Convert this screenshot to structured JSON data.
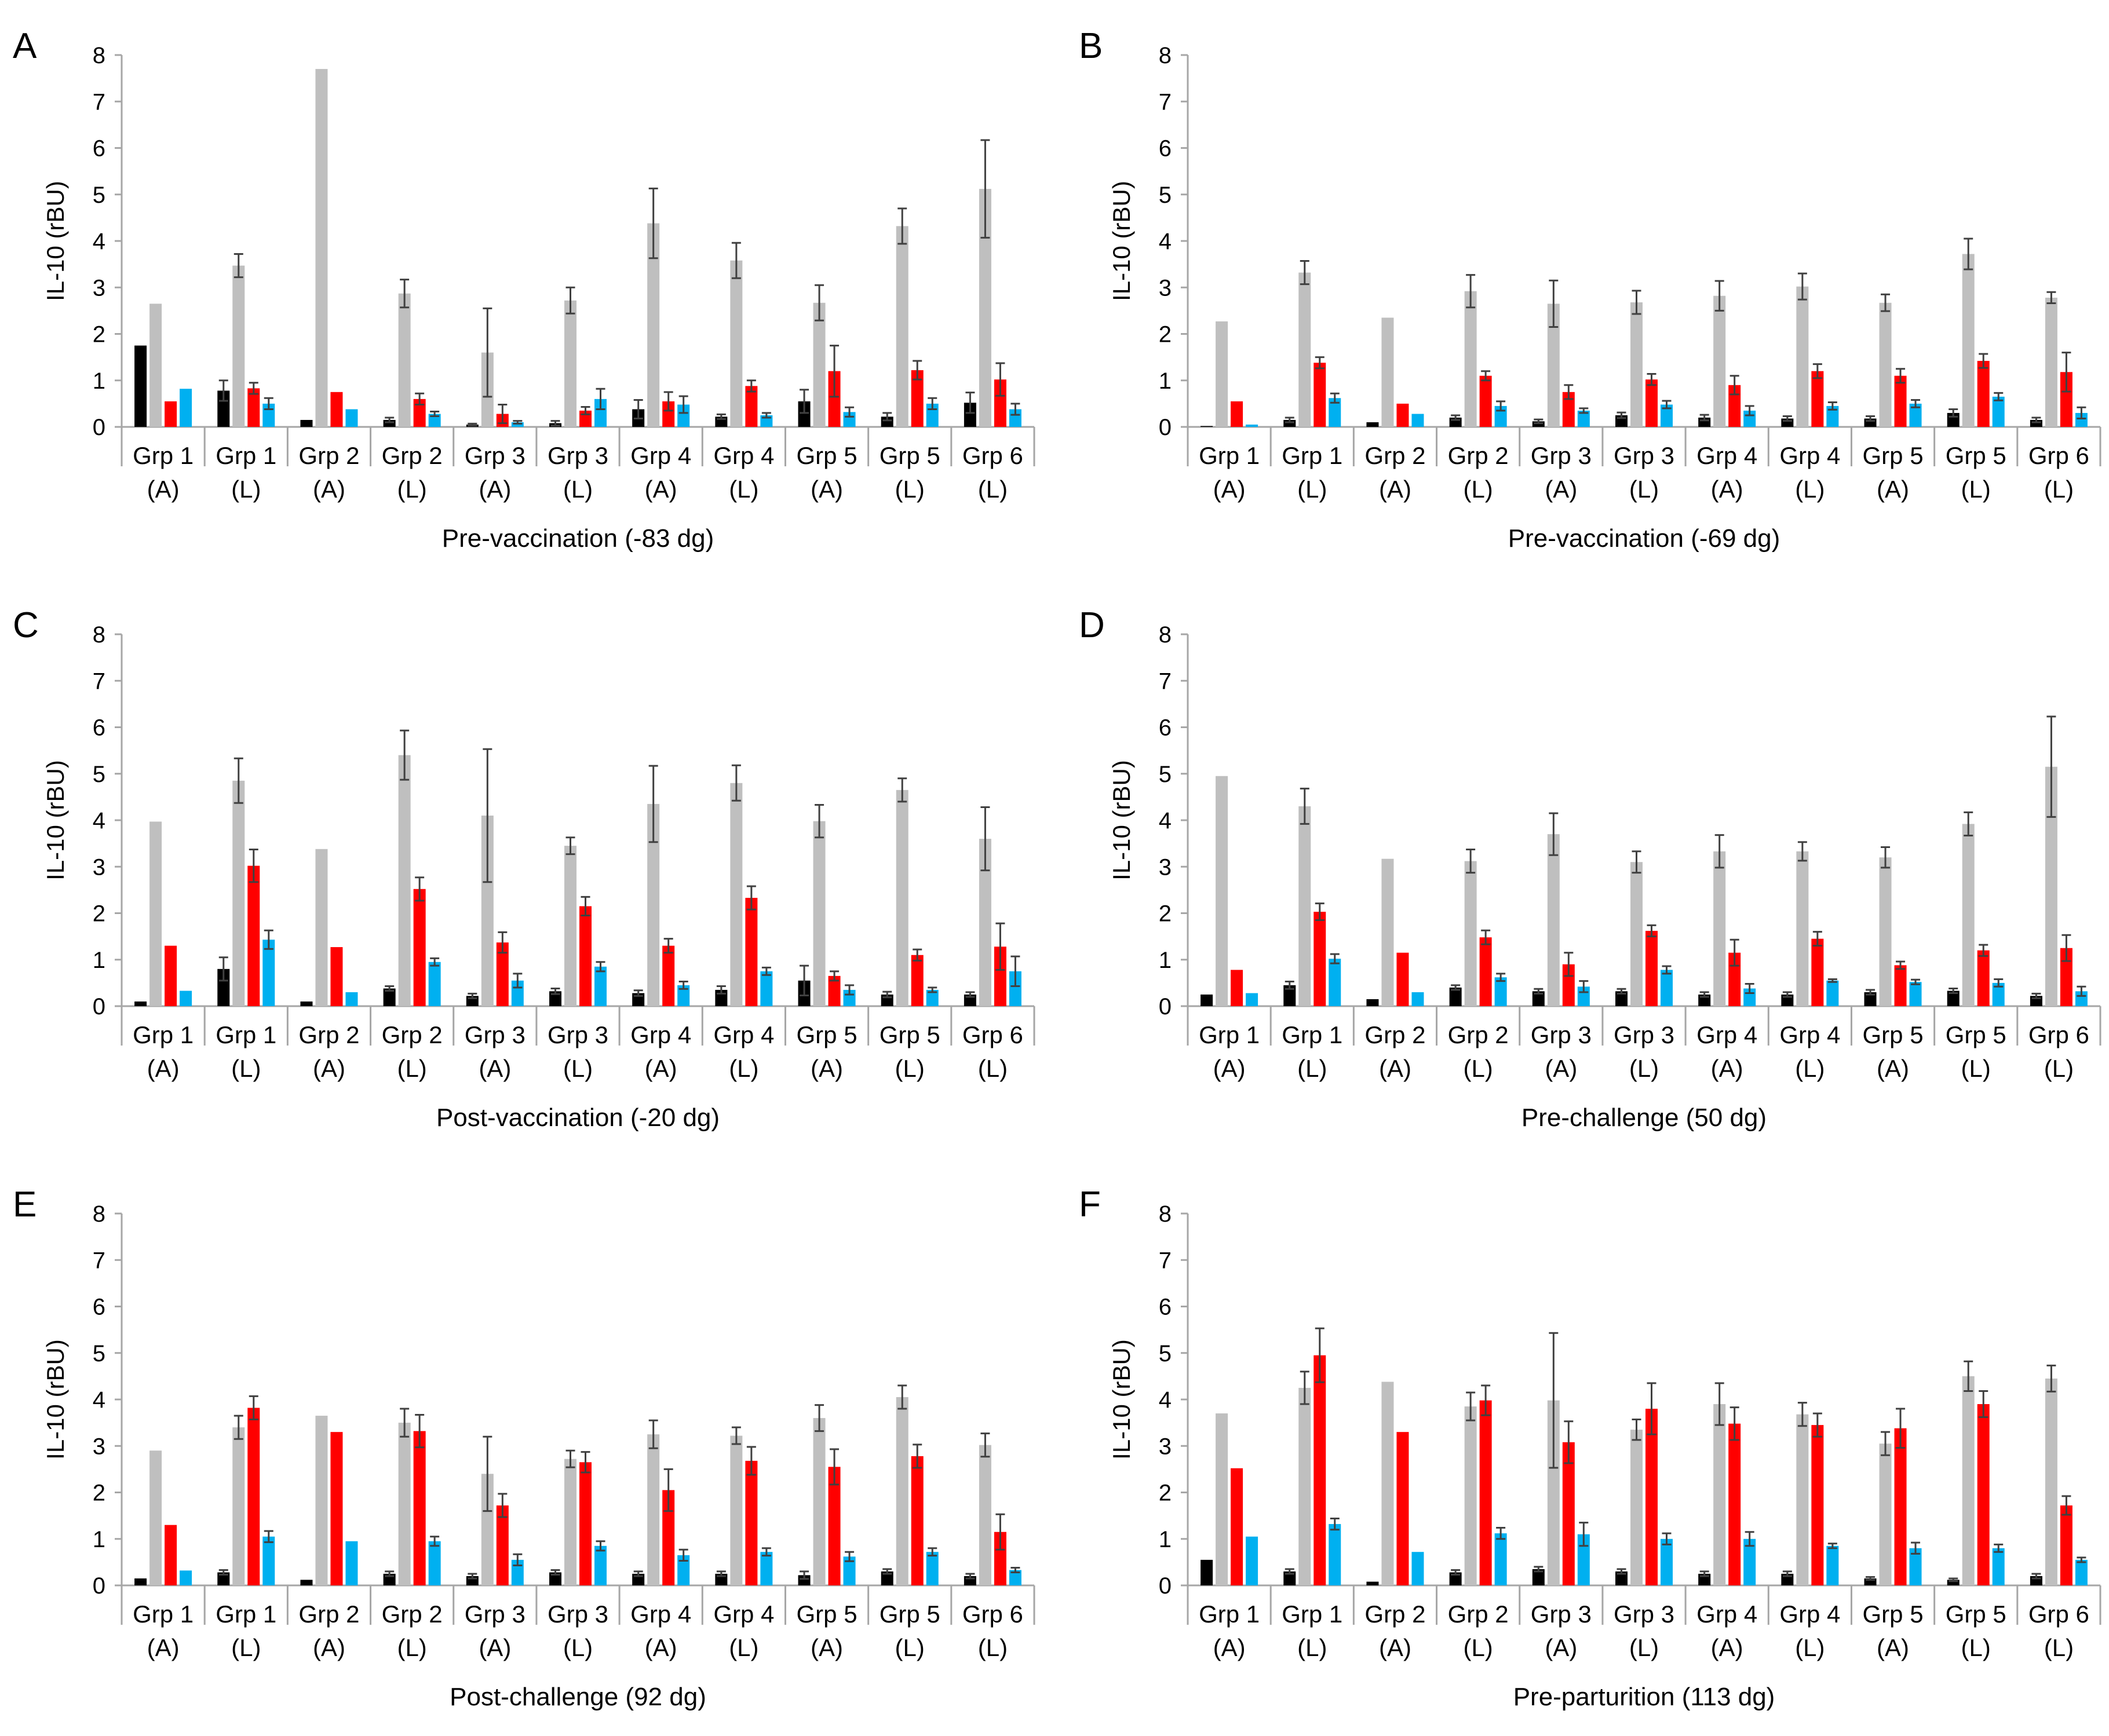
{
  "figure": {
    "colors": {
      "black": "#000000",
      "gray": "#bfbfbf",
      "red": "#ff0000",
      "blue": "#00b0f0",
      "axis": "#a6a6a6",
      "errorbar": "#404040"
    }
  },
  "chart_data": [
    {
      "type": "bar",
      "panel": "A",
      "title": "Pre-vaccination (-83 dg)",
      "ylabel": "IL-10 (rBU)",
      "ylim": [
        0,
        8
      ],
      "yticks": [
        "0",
        "1",
        "2",
        "3",
        "4",
        "5",
        "6",
        "7",
        "8"
      ],
      "categories": [
        [
          "Grp 1",
          "(A)"
        ],
        [
          "Grp 1",
          "(L)"
        ],
        [
          "Grp 2",
          "(A)"
        ],
        [
          "Grp 2",
          "(L)"
        ],
        [
          "Grp 3",
          "(A)"
        ],
        [
          "Grp 3",
          "(L)"
        ],
        [
          "Grp 4",
          "(A)"
        ],
        [
          "Grp 4",
          "(L)"
        ],
        [
          "Grp 5",
          "(A)"
        ],
        [
          "Grp 5",
          "(L)"
        ],
        [
          "Grp 6",
          "(L)"
        ]
      ],
      "series": [
        {
          "name": "black",
          "values": [
            1.75,
            0.78,
            0.15,
            0.15,
            0.05,
            0.08,
            0.38,
            0.22,
            0.55,
            0.22,
            0.52
          ],
          "errors": [
            0,
            0.22,
            0,
            0.05,
            0.02,
            0.05,
            0.2,
            0.05,
            0.25,
            0.08,
            0.22
          ]
        },
        {
          "name": "gray",
          "values": [
            2.65,
            3.47,
            7.7,
            2.87,
            1.6,
            2.72,
            4.38,
            3.58,
            2.67,
            4.32,
            5.12
          ],
          "errors": [
            0,
            0.25,
            0,
            0.3,
            0.95,
            0.28,
            0.75,
            0.38,
            0.38,
            0.38,
            1.05
          ]
        },
        {
          "name": "red",
          "values": [
            0.55,
            0.83,
            0.75,
            0.6,
            0.28,
            0.35,
            0.55,
            0.88,
            1.2,
            1.22,
            1.02
          ],
          "errors": [
            0,
            0.12,
            0,
            0.12,
            0.2,
            0.08,
            0.2,
            0.12,
            0.55,
            0.2,
            0.35
          ]
        },
        {
          "name": "blue",
          "values": [
            0.82,
            0.5,
            0.38,
            0.28,
            0.1,
            0.6,
            0.48,
            0.25,
            0.32,
            0.5,
            0.38
          ],
          "errors": [
            0,
            0.12,
            0,
            0.05,
            0.03,
            0.22,
            0.18,
            0.05,
            0.1,
            0.12,
            0.12
          ]
        }
      ]
    },
    {
      "type": "bar",
      "panel": "B",
      "title": "Pre-vaccination (-69 dg)",
      "ylabel": "IL-10 (rBU)",
      "ylim": [
        0,
        8
      ],
      "yticks": [
        "0",
        "1",
        "2",
        "3",
        "4",
        "5",
        "6",
        "7",
        "8"
      ],
      "categories": [
        [
          "Grp 1",
          "(A)"
        ],
        [
          "Grp 1",
          "(L)"
        ],
        [
          "Grp 2",
          "(A)"
        ],
        [
          "Grp 2",
          "(L)"
        ],
        [
          "Grp 3",
          "(A)"
        ],
        [
          "Grp 3",
          "(L)"
        ],
        [
          "Grp 4",
          "(A)"
        ],
        [
          "Grp 4",
          "(L)"
        ],
        [
          "Grp 5",
          "(A)"
        ],
        [
          "Grp 5",
          "(L)"
        ],
        [
          "Grp 6",
          "(L)"
        ]
      ],
      "series": [
        {
          "name": "black",
          "values": [
            0.02,
            0.15,
            0.1,
            0.2,
            0.12,
            0.25,
            0.2,
            0.18,
            0.18,
            0.3,
            0.15
          ],
          "errors": [
            0,
            0.05,
            0,
            0.05,
            0.04,
            0.06,
            0.06,
            0.05,
            0.05,
            0.08,
            0.05
          ]
        },
        {
          "name": "gray",
          "values": [
            2.27,
            3.32,
            2.35,
            2.92,
            2.65,
            2.68,
            2.82,
            3.02,
            2.67,
            3.72,
            2.78
          ],
          "errors": [
            0,
            0.25,
            0,
            0.35,
            0.5,
            0.25,
            0.32,
            0.28,
            0.18,
            0.33,
            0.12
          ]
        },
        {
          "name": "red",
          "values": [
            0.55,
            1.38,
            0.5,
            1.1,
            0.75,
            1.02,
            0.9,
            1.2,
            1.1,
            1.42,
            1.18
          ],
          "errors": [
            0,
            0.12,
            0,
            0.1,
            0.15,
            0.12,
            0.2,
            0.15,
            0.15,
            0.15,
            0.42
          ]
        },
        {
          "name": "blue",
          "values": [
            0.05,
            0.62,
            0.28,
            0.45,
            0.35,
            0.48,
            0.35,
            0.45,
            0.5,
            0.65,
            0.3
          ],
          "errors": [
            0,
            0.1,
            0,
            0.1,
            0.05,
            0.08,
            0.1,
            0.08,
            0.08,
            0.08,
            0.12
          ]
        }
      ]
    },
    {
      "type": "bar",
      "panel": "C",
      "title": "Post-vaccination (-20 dg)",
      "ylabel": "IL-10 (rBU)",
      "ylim": [
        0,
        8
      ],
      "yticks": [
        "0",
        "1",
        "2",
        "3",
        "4",
        "5",
        "6",
        "7",
        "8"
      ],
      "categories": [
        [
          "Grp 1",
          "(A)"
        ],
        [
          "Grp 1",
          "(L)"
        ],
        [
          "Grp 2",
          "(A)"
        ],
        [
          "Grp 2",
          "(L)"
        ],
        [
          "Grp 3",
          "(A)"
        ],
        [
          "Grp 3",
          "(L)"
        ],
        [
          "Grp 4",
          "(A)"
        ],
        [
          "Grp 4",
          "(L)"
        ],
        [
          "Grp 5",
          "(A)"
        ],
        [
          "Grp 5",
          "(L)"
        ],
        [
          "Grp 6",
          "(L)"
        ]
      ],
      "series": [
        {
          "name": "black",
          "values": [
            0.1,
            0.8,
            0.1,
            0.38,
            0.22,
            0.32,
            0.28,
            0.35,
            0.55,
            0.25,
            0.25
          ],
          "errors": [
            0,
            0.25,
            0,
            0.05,
            0.05,
            0.06,
            0.06,
            0.08,
            0.32,
            0.06,
            0.05
          ]
        },
        {
          "name": "gray",
          "values": [
            3.97,
            4.85,
            3.38,
            5.4,
            4.1,
            3.45,
            4.35,
            4.8,
            3.98,
            4.65,
            3.6
          ],
          "errors": [
            0,
            0.48,
            0,
            0.53,
            1.43,
            0.18,
            0.82,
            0.38,
            0.35,
            0.25,
            0.68
          ]
        },
        {
          "name": "red",
          "values": [
            1.3,
            3.02,
            1.27,
            2.52,
            1.37,
            2.15,
            1.3,
            2.33,
            0.65,
            1.1,
            1.28
          ],
          "errors": [
            0,
            0.35,
            0,
            0.25,
            0.22,
            0.2,
            0.15,
            0.25,
            0.1,
            0.12,
            0.5
          ]
        },
        {
          "name": "blue",
          "values": [
            0.33,
            1.43,
            0.3,
            0.95,
            0.55,
            0.85,
            0.45,
            0.75,
            0.35,
            0.35,
            0.75
          ],
          "errors": [
            0,
            0.2,
            0,
            0.08,
            0.15,
            0.1,
            0.08,
            0.08,
            0.1,
            0.05,
            0.32
          ]
        }
      ]
    },
    {
      "type": "bar",
      "panel": "D",
      "title": "Pre-challenge (50 dg)",
      "ylabel": "IL-10 (rBU)",
      "ylim": [
        0,
        8
      ],
      "yticks": [
        "0",
        "1",
        "2",
        "3",
        "4",
        "5",
        "6",
        "7",
        "8"
      ],
      "categories": [
        [
          "Grp 1",
          "(A)"
        ],
        [
          "Grp 1",
          "(L)"
        ],
        [
          "Grp 2",
          "(A)"
        ],
        [
          "Grp 2",
          "(L)"
        ],
        [
          "Grp 3",
          "(A)"
        ],
        [
          "Grp 3",
          "(L)"
        ],
        [
          "Grp 4",
          "(A)"
        ],
        [
          "Grp 4",
          "(L)"
        ],
        [
          "Grp 5",
          "(A)"
        ],
        [
          "Grp 5",
          "(L)"
        ],
        [
          "Grp 6",
          "(L)"
        ]
      ],
      "series": [
        {
          "name": "black",
          "values": [
            0.25,
            0.45,
            0.15,
            0.4,
            0.32,
            0.32,
            0.25,
            0.25,
            0.3,
            0.33,
            0.22
          ],
          "errors": [
            0,
            0.08,
            0,
            0.05,
            0.05,
            0.05,
            0.05,
            0.05,
            0.05,
            0.05,
            0.05
          ]
        },
        {
          "name": "gray",
          "values": [
            4.95,
            4.3,
            3.17,
            3.12,
            3.7,
            3.1,
            3.33,
            3.33,
            3.2,
            3.92,
            5.15
          ],
          "errors": [
            0,
            0.38,
            0,
            0.25,
            0.45,
            0.23,
            0.35,
            0.2,
            0.22,
            0.25,
            1.08
          ]
        },
        {
          "name": "red",
          "values": [
            0.78,
            2.03,
            1.15,
            1.48,
            0.9,
            1.62,
            1.15,
            1.45,
            0.88,
            1.2,
            1.25
          ],
          "errors": [
            0,
            0.18,
            0,
            0.15,
            0.25,
            0.12,
            0.28,
            0.15,
            0.08,
            0.12,
            0.28
          ]
        },
        {
          "name": "blue",
          "values": [
            0.28,
            1.02,
            0.3,
            0.62,
            0.42,
            0.78,
            0.38,
            0.55,
            0.52,
            0.5,
            0.32
          ],
          "errors": [
            0,
            0.1,
            0,
            0.08,
            0.12,
            0.08,
            0.1,
            0.03,
            0.05,
            0.08,
            0.1
          ]
        }
      ]
    },
    {
      "type": "bar",
      "panel": "E",
      "title": "Post-challenge (92 dg)",
      "ylabel": "IL-10 (rBU)",
      "ylim": [
        0,
        8
      ],
      "yticks": [
        "0",
        "1",
        "2",
        "3",
        "4",
        "5",
        "6",
        "7",
        "8"
      ],
      "categories": [
        [
          "Grp 1",
          "(A)"
        ],
        [
          "Grp 1",
          "(L)"
        ],
        [
          "Grp 2",
          "(A)"
        ],
        [
          "Grp 2",
          "(L)"
        ],
        [
          "Grp 3",
          "(A)"
        ],
        [
          "Grp 3",
          "(L)"
        ],
        [
          "Grp 4",
          "(A)"
        ],
        [
          "Grp 4",
          "(L)"
        ],
        [
          "Grp 5",
          "(A)"
        ],
        [
          "Grp 5",
          "(L)"
        ],
        [
          "Grp 6",
          "(L)"
        ]
      ],
      "series": [
        {
          "name": "black",
          "values": [
            0.15,
            0.28,
            0.12,
            0.25,
            0.2,
            0.28,
            0.25,
            0.25,
            0.22,
            0.3,
            0.2
          ],
          "errors": [
            0,
            0.05,
            0,
            0.05,
            0.05,
            0.05,
            0.05,
            0.05,
            0.08,
            0.05,
            0.05
          ]
        },
        {
          "name": "gray",
          "values": [
            2.9,
            3.4,
            3.65,
            3.5,
            2.4,
            2.72,
            3.25,
            3.22,
            3.6,
            4.05,
            3.02
          ],
          "errors": [
            0,
            0.25,
            0,
            0.3,
            0.8,
            0.18,
            0.3,
            0.18,
            0.28,
            0.25,
            0.25
          ]
        },
        {
          "name": "red",
          "values": [
            1.3,
            3.82,
            3.3,
            3.32,
            1.72,
            2.65,
            2.05,
            2.68,
            2.55,
            2.78,
            1.15
          ],
          "errors": [
            0,
            0.25,
            0,
            0.35,
            0.25,
            0.22,
            0.45,
            0.3,
            0.38,
            0.25,
            0.38
          ]
        },
        {
          "name": "blue",
          "values": [
            0.32,
            1.05,
            0.95,
            0.95,
            0.55,
            0.85,
            0.65,
            0.72,
            0.62,
            0.72,
            0.33
          ],
          "errors": [
            0,
            0.12,
            0,
            0.1,
            0.12,
            0.1,
            0.12,
            0.08,
            0.1,
            0.08,
            0.05
          ]
        }
      ]
    },
    {
      "type": "bar",
      "panel": "F",
      "title": "Pre-parturition (113 dg)",
      "ylabel": "IL-10 (rBU)",
      "ylim": [
        0,
        8
      ],
      "yticks": [
        "0",
        "1",
        "2",
        "3",
        "4",
        "5",
        "6",
        "7",
        "8"
      ],
      "categories": [
        [
          "Grp 1",
          "(A)"
        ],
        [
          "Grp 1",
          "(L)"
        ],
        [
          "Grp 2",
          "(A)"
        ],
        [
          "Grp 2",
          "(L)"
        ],
        [
          "Grp 3",
          "(A)"
        ],
        [
          "Grp 3",
          "(L)"
        ],
        [
          "Grp 4",
          "(A)"
        ],
        [
          "Grp 4",
          "(L)"
        ],
        [
          "Grp 5",
          "(A)"
        ],
        [
          "Grp 5",
          "(L)"
        ],
        [
          "Grp 6",
          "(L)"
        ]
      ],
      "series": [
        {
          "name": "black",
          "values": [
            0.55,
            0.3,
            0.08,
            0.28,
            0.35,
            0.3,
            0.25,
            0.25,
            0.15,
            0.12,
            0.2
          ],
          "errors": [
            0,
            0.05,
            0,
            0.05,
            0.05,
            0.05,
            0.05,
            0.05,
            0.03,
            0.03,
            0.05
          ]
        },
        {
          "name": "gray",
          "values": [
            3.7,
            4.25,
            4.38,
            3.85,
            3.98,
            3.35,
            3.9,
            3.68,
            3.05,
            4.5,
            4.45
          ],
          "errors": [
            0,
            0.35,
            0,
            0.3,
            1.45,
            0.22,
            0.45,
            0.25,
            0.25,
            0.32,
            0.28
          ]
        },
        {
          "name": "red",
          "values": [
            2.52,
            4.95,
            3.3,
            3.98,
            3.08,
            3.8,
            3.48,
            3.45,
            3.38,
            3.9,
            1.72
          ],
          "errors": [
            0,
            0.58,
            0,
            0.32,
            0.45,
            0.55,
            0.35,
            0.25,
            0.42,
            0.28,
            0.2
          ]
        },
        {
          "name": "blue",
          "values": [
            1.05,
            1.32,
            0.72,
            1.12,
            1.1,
            1.0,
            1.0,
            0.85,
            0.8,
            0.8,
            0.55
          ],
          "errors": [
            0,
            0.12,
            0,
            0.12,
            0.25,
            0.12,
            0.15,
            0.05,
            0.12,
            0.08,
            0.05
          ]
        }
      ]
    }
  ]
}
